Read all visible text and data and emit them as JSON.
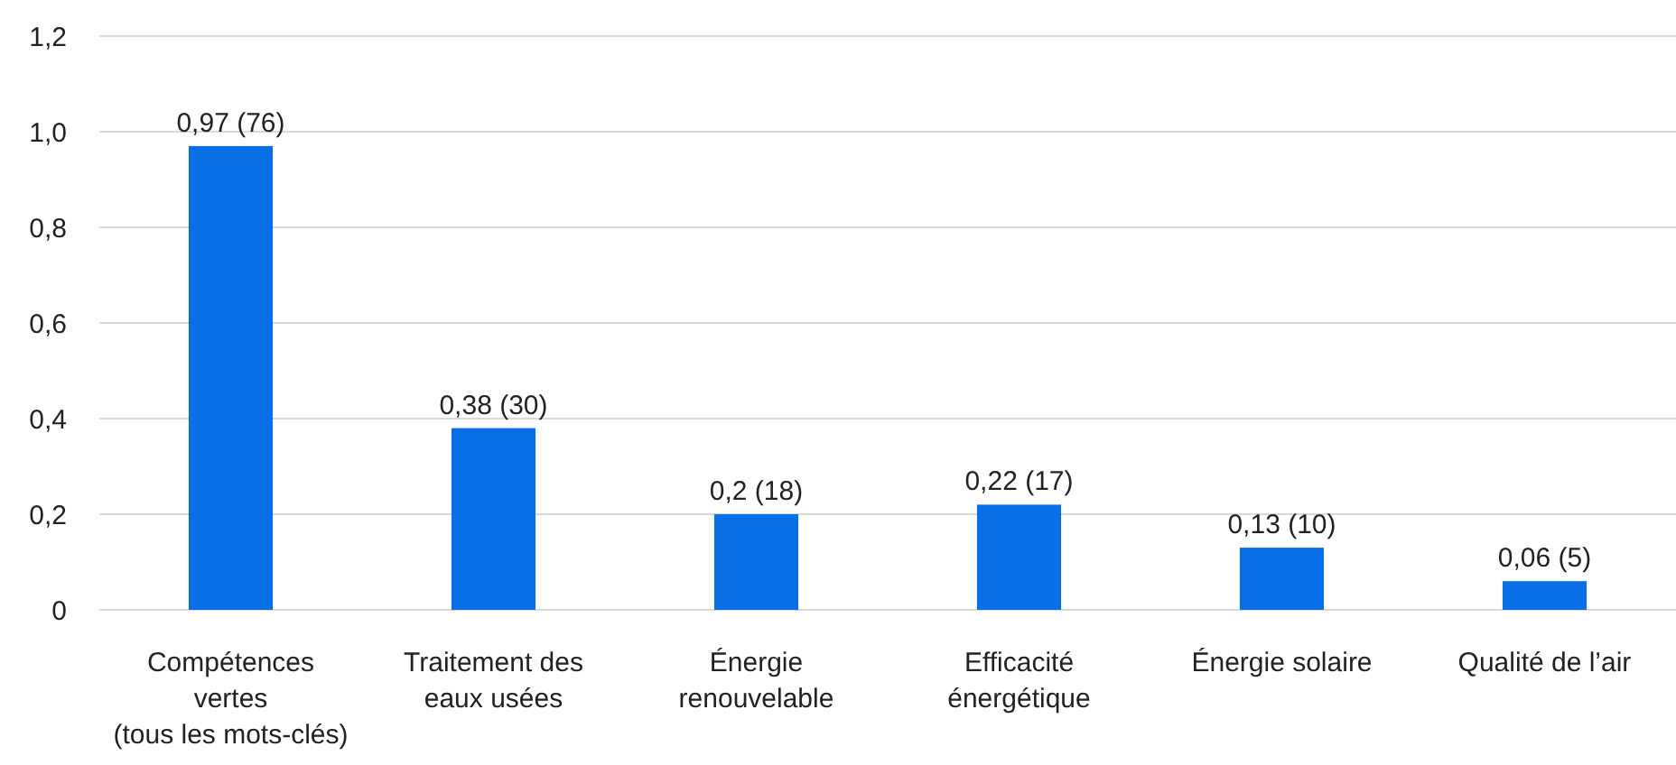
{
  "chart_data": {
    "type": "bar",
    "categories": [
      "Compétences\nvertes\n(tous les mots-clés)",
      "Traitement des\neaux usées",
      "Énergie\nrenouvelable",
      "Efficacité\nénergétique",
      "Énergie solaire",
      "Qualité de l’air"
    ],
    "values": [
      0.97,
      0.38,
      0.2,
      0.22,
      0.13,
      0.06
    ],
    "value_labels": [
      "0,97 (76)",
      "0,38 (30)",
      "0,2 (18)",
      "0,22 (17)",
      "0,13 (10)",
      "0,06 (5)"
    ],
    "color": "#0a6ee6",
    "ylim": [
      0,
      1.2
    ],
    "yticks": [
      0,
      {
        "value": 0.2,
        "label": "0,2"
      },
      {
        "value": 0.4,
        "label": "0,4"
      },
      {
        "value": 0.6,
        "label": "0,6"
      },
      {
        "value": 0.8,
        "label": "0,8"
      },
      {
        "value": 1.0,
        "label": "1,0"
      },
      {
        "value": 1.2,
        "label": "1,2"
      }
    ],
    "grid": "y"
  }
}
